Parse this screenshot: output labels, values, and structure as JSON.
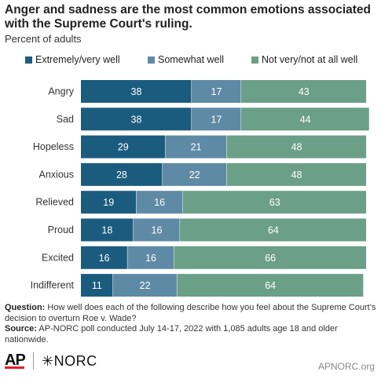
{
  "title": "Anger and sadness are the most common emotions associated with the Supreme Court's ruling.",
  "subtitle": "Percent of adults",
  "colors": {
    "series1": "#1b5c7e",
    "series2": "#5f8aa5",
    "series3": "#6c9f87",
    "text_light": "#ffffff"
  },
  "chart_data": {
    "type": "bar",
    "orientation": "horizontal",
    "stacked": true,
    "title": "Anger and sadness are the most common emotions associated with the Supreme Court's ruling.",
    "subtitle": "Percent of adults",
    "legend_position": "top",
    "grid": false,
    "xlim": [
      0,
      100
    ],
    "categories": [
      "Angry",
      "Sad",
      "Hopeless",
      "Anxious",
      "Relieved",
      "Proud",
      "Excited",
      "Indifferent"
    ],
    "series": [
      {
        "name": "Extremely/very well",
        "values": [
          38,
          38,
          29,
          28,
          19,
          18,
          16,
          11
        ]
      },
      {
        "name": "Somewhat well",
        "values": [
          17,
          17,
          21,
          22,
          16,
          16,
          16,
          22
        ]
      },
      {
        "name": "Not very/not at all well",
        "values": [
          43,
          44,
          48,
          48,
          63,
          64,
          66,
          64
        ]
      }
    ]
  },
  "footnote": {
    "question_label": "Question:",
    "question_text": "How well does each of the following describe how you feel about the Supreme Court’s decision to overturn Roe v. Wade?",
    "source_label": "Source:",
    "source_text": "AP-NORC poll conducted July 14-17, 2022 with 1,085 adults age 18 and older nationwide."
  },
  "logos": {
    "ap": "AP",
    "norc": "NORC"
  },
  "website": "APNORC.org"
}
